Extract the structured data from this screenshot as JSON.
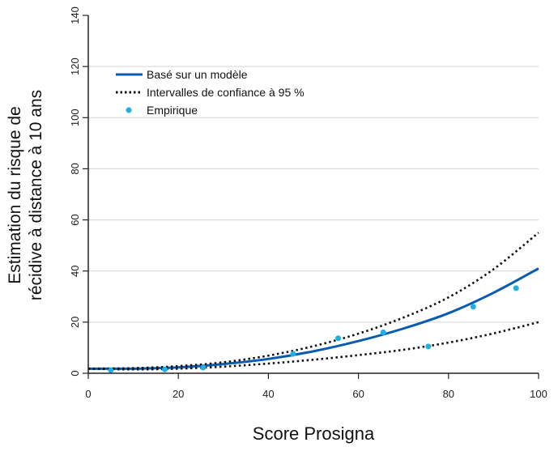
{
  "chart_data": {
    "type": "line",
    "title": "",
    "xlabel": "Score Prosigna",
    "ylabel_lines": [
      "Estimation du risque de",
      "récidive à distance à 10 ans"
    ],
    "xlim": [
      0,
      100
    ],
    "ylim": [
      0,
      140
    ],
    "x_ticks": [
      0,
      20,
      40,
      60,
      80,
      100
    ],
    "y_ticks": [
      0,
      20,
      40,
      60,
      80,
      100,
      120,
      140
    ],
    "grid": "horizontal",
    "legend_position": "top-left",
    "colors": {
      "model": "#0a5cb0",
      "ci": "#111111",
      "empirical": "#22b0e4",
      "grid": "#d4d4d4"
    },
    "series": [
      {
        "name": "Basé sur un modèle",
        "style": "solid",
        "x": [
          0,
          10,
          20,
          30,
          40,
          50,
          60,
          70,
          80,
          90,
          100
        ],
        "values": [
          1.8,
          1.8,
          2.3,
          3.6,
          5.6,
          8.6,
          12.6,
          17.5,
          23.5,
          31.5,
          41.0
        ]
      },
      {
        "name": "Intervalles de confiance à 95 %",
        "style": "dotted",
        "x": [
          0,
          10,
          20,
          30,
          40,
          50,
          60,
          70,
          80,
          90,
          100
        ],
        "values": [
          1.8,
          2.0,
          2.8,
          4.3,
          6.9,
          10.6,
          15.5,
          21.8,
          29.7,
          40.7,
          55.0
        ]
      },
      {
        "name": "Intervalles de confiance à 95 %",
        "style": "dotted",
        "show_in_legend": false,
        "x": [
          0,
          10,
          20,
          30,
          40,
          50,
          60,
          70,
          80,
          90,
          100
        ],
        "values": [
          1.8,
          1.5,
          1.8,
          2.6,
          3.8,
          5.3,
          7.1,
          9.2,
          12.0,
          15.6,
          20.0
        ]
      },
      {
        "name": "Empirique",
        "style": "points",
        "x": [
          5,
          17,
          25.5,
          45.5,
          55.5,
          65.5,
          75.5,
          85.5,
          95
        ],
        "values": [
          1.2,
          1.5,
          2.2,
          7.6,
          13.7,
          16.0,
          10.5,
          26.0,
          33.3
        ]
      }
    ]
  }
}
